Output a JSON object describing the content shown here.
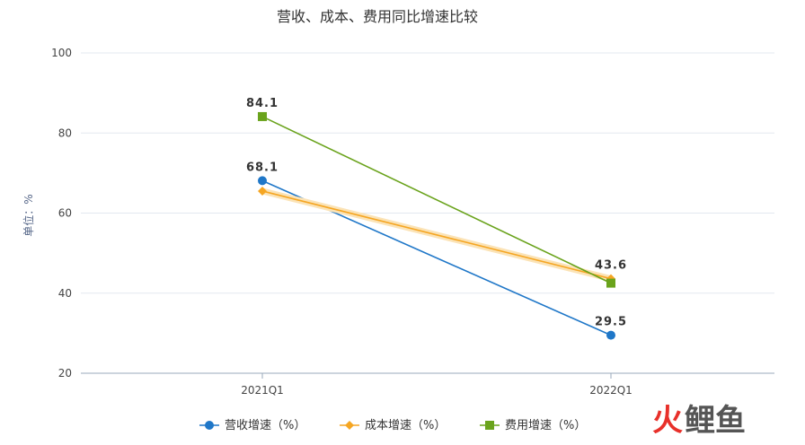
{
  "chart_data": {
    "type": "line",
    "title": "营收、成本、费用同比增速比较",
    "ylabel": "单位：%",
    "xlabel": "",
    "categories": [
      "2021Q1",
      "2022Q1"
    ],
    "ylim": [
      20,
      100
    ],
    "yticks": [
      20,
      40,
      60,
      80,
      100
    ],
    "grid": true,
    "legend_position": "bottom",
    "series": [
      {
        "name": "营收增速（%）",
        "color": "#1f77c8",
        "marker": "circle",
        "values": [
          68.1,
          29.5
        ],
        "labels": [
          "68.1",
          "29.5"
        ]
      },
      {
        "name": "成本增速（%）",
        "color": "#f5a623",
        "marker": "diamond",
        "values": [
          65.5,
          43.6
        ],
        "labels": [
          "",
          "43.6"
        ]
      },
      {
        "name": "费用增速（%）",
        "color": "#6aa31c",
        "marker": "square",
        "values": [
          84.1,
          42.5
        ],
        "labels": [
          "84.1",
          ""
        ]
      }
    ]
  },
  "watermark": {
    "part1": "火",
    "part2": "鲤鱼",
    "color1": "#e8302a",
    "color2": "#555555"
  }
}
